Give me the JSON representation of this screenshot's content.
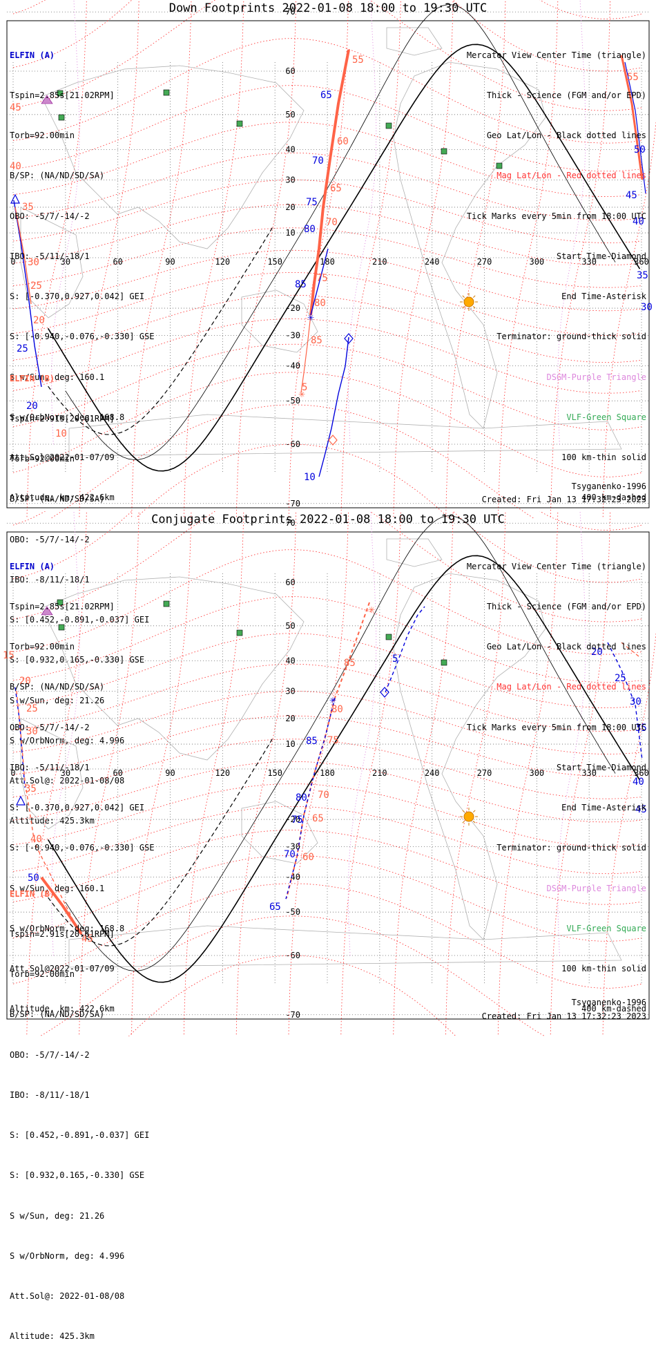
{
  "panels": [
    {
      "title": "Down Footprints 2022-01-08 18:00 to 19:30 UTC",
      "elfin_a": {
        "header": "ELFIN (A)",
        "lines": [
          "Tspin=2.85s[21.02RPM]",
          "Torb=92.00min",
          "B/SP: (NA/ND/SD/SA)",
          "OBO: -5/7/-14/-2",
          "IBO: -5/11/-18/1",
          "S: [-0.370,0.927,0.042] GEI",
          "S: [-0.940,-0.076,-0.330] GSE",
          "S w/Sun, deg: 160.1",
          "S w/OrbNorm, deg: 168.8",
          "Att.Sol@2022-01-07/09",
          "Altitude, km: 422.6km"
        ]
      },
      "elfin_b": {
        "header": "ELFIN (B)",
        "lines": [
          "Tspin=2.91s[20.61RPM]",
          "Torb=92.00min",
          "B/SP: (NA/ND/SD/SA)",
          "OBO: -5/7/-14/-2",
          "IBO: -8/11/-18/1",
          "S: [0.452,-0.891,-0.037] GEI",
          "S: [0.932,0.165,-0.330] GSE",
          "S w/Sun, deg: 21.26",
          "S w/OrbNorm, deg: 4.996",
          "Att.Sol@: 2022-01-08/08",
          "Altitude: 425.3km"
        ]
      },
      "model": "Tsyganenko-1996",
      "created": "Created: Fri Jan 13 17:32:23 2023"
    },
    {
      "title": "Conjugate Footprints 2022-01-08 18:00 to 19:30 UTC",
      "elfin_a": {
        "header": "ELFIN (A)",
        "lines": [
          "Tspin=2.85s[21.02RPM]",
          "Torb=92.00min",
          "B/SP: (NA/ND/SD/SA)",
          "OBO: -5/7/-14/-2",
          "IBO: -5/11/-18/1",
          "S: [-0.370,0.927,0.042] GEI",
          "S: [-0.940,-0.076,-0.330] GSE",
          "S w/Sun, deg: 160.1",
          "S w/OrbNorm, deg: 168.8",
          "Att.Sol@2022-01-07/09",
          "Altitude, km: 422.6km"
        ]
      },
      "elfin_b": {
        "header": "ELFIN (B)",
        "lines": [
          "Tspin=2.91s[20.61RPM]",
          "Torb=92.00min",
          "B/SP: (NA/ND/SD/SA)",
          "OBO: -5/7/-14/-2",
          "IBO: -8/11/-18/1",
          "S: [0.452,-0.891,-0.037] GEI",
          "S: [0.932,0.165,-0.330] GSE",
          "S w/Sun, deg: 21.26",
          "S w/OrbNorm, deg: 4.996",
          "Att.Sol@: 2022-01-08/08",
          "Altitude: 425.3km"
        ]
      },
      "model": "Tsyganenko-1996",
      "created": "Created: Fri Jan 13 17:32:23 2023"
    }
  ],
  "legend": {
    "center": "Mercator View Center Time (triangle)",
    "science": "Thick - Science (FGM and/or EPD)",
    "geo": "Geo Lat/Lon - Black dotted lines",
    "mag": "Mag Lat/Lon - Red dotted lines",
    "ticks": "Tick Marks every 5min from 18:00 UTC",
    "start": "Start Time-Diamond",
    "end": "End Time-Asterisk",
    "terminator": "Terminator: ground-thick solid",
    "dsgm": "DSGM-Purple Triangle",
    "vlf": "VLF-Green Square",
    "km100": "100 km-thin solid",
    "km400": "400 km-dashed"
  },
  "axes": {
    "lon_ticks": [
      "0",
      "30",
      "60",
      "90",
      "120",
      "150",
      "180",
      "210",
      "240",
      "270",
      "300",
      "330",
      "360"
    ],
    "lat_ticks": [
      "70",
      "60",
      "50",
      "40",
      "30",
      "20",
      "10",
      "-20",
      "-30",
      "-40",
      "-50",
      "-60",
      "-70"
    ]
  },
  "chart_data": [
    {
      "type": "line",
      "title": "Down Footprints 2022-01-08 18:00 to 19:30 UTC",
      "xlim": [
        0,
        360
      ],
      "ylim": [
        -80,
        80
      ],
      "series": [
        {
          "name": "ELFIN (A)",
          "ticks": [
            [
              4,
              46
            ],
            [
              8,
              28
            ],
            [
              14,
              12
            ],
            [
              22,
              -28
            ],
            [
              168,
              -10
            ],
            [
              170,
              -2
            ],
            [
              172,
              12
            ],
            [
              174,
              22
            ],
            [
              175,
              34
            ],
            [
              178,
              44
            ],
            [
              181,
              60
            ],
            [
              184,
              78
            ],
            [
              350,
              76
            ],
            [
              356,
              58
            ],
            [
              358,
              40
            ],
            [
              360,
              28
            ]
          ],
          "tick_labels": [
            [
              4,
              "40"
            ],
            [
              6,
              "35"
            ],
            [
              12,
              "30"
            ],
            [
              14,
              "25"
            ],
            [
              20,
              "20"
            ],
            [
              163,
              "85"
            ],
            [
              170,
              "80"
            ],
            [
              172,
              "75"
            ],
            [
              174,
              "70"
            ],
            [
              173,
              "65"
            ],
            [
              356,
              "55"
            ],
            [
              356,
              "50"
            ],
            [
              358,
              "45"
            ],
            [
              358,
              "40"
            ],
            [
              360,
              "35"
            ],
            [
              360,
              "30"
            ]
          ]
        },
        {
          "name": "ELFIN (B)",
          "ticks": [
            [
              4,
              52
            ],
            [
              8,
              40
            ],
            [
              10,
              28
            ],
            [
              12,
              -8
            ],
            [
              16,
              -30
            ],
            [
              165,
              -24
            ],
            [
              168,
              -32
            ],
            [
              170,
              -44
            ],
            [
              172,
              -56
            ],
            [
              182,
              12
            ],
            [
              186,
              32
            ],
            [
              190,
              48
            ],
            [
              193,
              66
            ],
            [
              196,
              78
            ],
            [
              355,
              70
            ],
            [
              358,
              56
            ]
          ],
          "tick_labels": [
            [
              4,
              "45"
            ],
            [
              6,
              "40"
            ],
            [
              10,
              "35"
            ],
            [
              12,
              "30"
            ],
            [
              16,
              "25"
            ],
            [
              18,
              "20"
            ],
            [
              16,
              "10"
            ],
            [
              190,
              "55"
            ],
            [
              188,
              "60"
            ],
            [
              182,
              "65"
            ],
            [
              180,
              "70"
            ],
            [
              178,
              "75"
            ],
            [
              172,
              "80"
            ],
            [
              168,
              "85"
            ],
            [
              164,
              "5"
            ],
            [
              360,
              "55"
            ]
          ]
        }
      ]
    },
    {
      "type": "line",
      "title": "Conjugate Footprints 2022-01-08 18:00 to 19:30 UTC",
      "xlim": [
        0,
        360
      ],
      "ylim": [
        -80,
        80
      ],
      "series": [
        {
          "name": "ELFIN (A)",
          "tick_labels": [
            [
              6,
              "20"
            ],
            [
              6,
              "25"
            ],
            [
              8,
              "30"
            ],
            [
              10,
              "35"
            ],
            [
              14,
              "40"
            ],
            [
              16,
              "45"
            ],
            [
              18,
              "50"
            ],
            [
              160,
              "85"
            ],
            [
              150,
              "80"
            ],
            [
              148,
              "75"
            ],
            [
              142,
              "70"
            ],
            [
              134,
              "65"
            ],
            [
              218,
              "5"
            ],
            [
              330,
              "20"
            ],
            [
              336,
              "25"
            ],
            [
              344,
              "30"
            ],
            [
              350,
              "35"
            ],
            [
              350,
              "40"
            ],
            [
              350,
              "45"
            ]
          ]
        },
        {
          "name": "ELFIN (B)",
          "tick_labels": [
            [
              2,
              "15"
            ],
            [
              6,
              "20"
            ],
            [
              8,
              "25"
            ],
            [
              10,
              "30"
            ],
            [
              12,
              "35"
            ],
            [
              14,
              "40"
            ],
            [
              40,
              "45"
            ],
            [
              178,
              "80"
            ],
            [
              176,
              "75"
            ],
            [
              168,
              "70"
            ],
            [
              164,
              "65"
            ],
            [
              160,
              "60"
            ],
            [
              196,
              "85"
            ],
            [
              196,
              "5"
            ]
          ]
        }
      ]
    }
  ]
}
